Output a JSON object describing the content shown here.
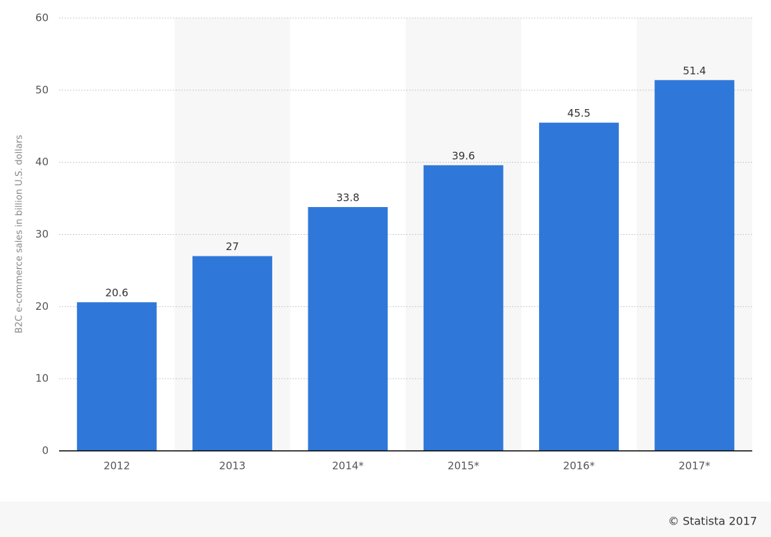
{
  "chart_data": {
    "type": "bar",
    "y_axis_label": "B2C e-commerce sales in billion U.S. dollars",
    "categories": [
      "2012",
      "2013",
      "2014*",
      "2015*",
      "2016*",
      "2017*"
    ],
    "values": [
      20.6,
      27,
      33.8,
      39.6,
      45.5,
      51.4
    ],
    "color": "#2f78d9",
    "ylim": [
      0,
      60
    ],
    "yticks": [
      0,
      10,
      20,
      30,
      40,
      50,
      60
    ],
    "grid": true,
    "alternating_band_shading": true,
    "credit": "© Statista 2017"
  }
}
